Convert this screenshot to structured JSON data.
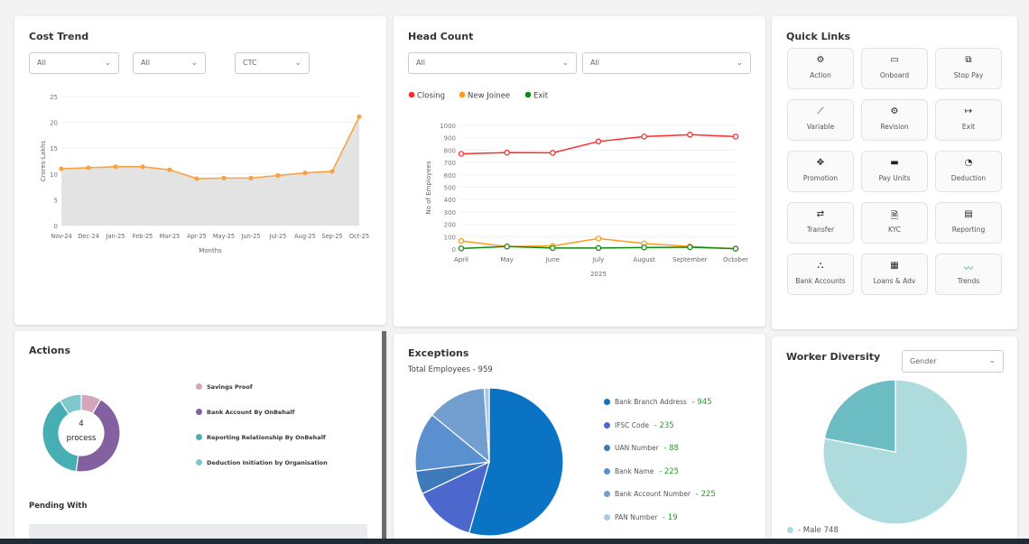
{
  "cost_trend": {
    "title": "Cost Trend",
    "filters": [
      "All",
      "All",
      "CTC"
    ]
  },
  "head_count": {
    "title": "Head Count",
    "filters": [
      "All",
      "All"
    ]
  },
  "quick_links": {
    "title": "Quick Links",
    "items": [
      {
        "label": "Action",
        "icon": "action-icon",
        "glyph": "⚙"
      },
      {
        "label": "Onboard",
        "icon": "onboard-icon",
        "glyph": "▭"
      },
      {
        "label": "Stop Pay",
        "icon": "stop-pay-icon",
        "glyph": "⧉"
      },
      {
        "label": "Variable",
        "icon": "variable-chart-icon",
        "glyph": "⟋"
      },
      {
        "label": "Revision",
        "icon": "revision-icon",
        "glyph": "⚙"
      },
      {
        "label": "Exit",
        "icon": "exit-icon",
        "glyph": "↦"
      },
      {
        "label": "Promotion",
        "icon": "promotion-icon",
        "glyph": "✥"
      },
      {
        "label": "Pay Units",
        "icon": "pay-units-icon",
        "glyph": "▬"
      },
      {
        "label": "Deduction",
        "icon": "deduction-icon",
        "glyph": "◔"
      },
      {
        "label": "Transfer",
        "icon": "transfer-icon",
        "glyph": "⇄"
      },
      {
        "label": "KYC",
        "icon": "kyc-icon",
        "glyph": "🗎"
      },
      {
        "label": "Reporting",
        "icon": "reporting-icon",
        "glyph": "▤"
      },
      {
        "label": "Bank Accounts",
        "icon": "bank-accounts-icon",
        "glyph": "⛬"
      },
      {
        "label": "Loans & Adv",
        "icon": "loans-icon",
        "glyph": "▦"
      },
      {
        "label": "Trends",
        "icon": "trends-icon",
        "glyph": "〰"
      }
    ]
  },
  "actions": {
    "title": "Actions",
    "center_count": "4",
    "center_label": "process",
    "pending_title": "Pending With"
  },
  "exceptions": {
    "title": "Exceptions",
    "subtitle": "Total Employees - 959"
  },
  "diversity": {
    "title": "Worker Diversity",
    "filter": "Gender"
  },
  "chart_data": [
    {
      "type": "area",
      "id": "cost",
      "xlabel": "Months",
      "ylabel": "Crores-Lakhs",
      "ylim": [
        0,
        25
      ],
      "yticks": [
        0,
        5,
        10,
        15,
        20,
        25
      ],
      "grid": true,
      "categories": [
        "Nov-24",
        "Dec-24",
        "Jan-25",
        "Feb-25",
        "Mar-25",
        "Apr-25",
        "May-25",
        "Jun-25",
        "Jul-25",
        "Aug-25",
        "Sep-25",
        "Oct-25"
      ],
      "values": [
        11,
        11.2,
        11.4,
        11.4,
        10.8,
        9.1,
        9.2,
        9.2,
        9.7,
        10.2,
        10.5,
        21.1
      ],
      "color": "#f7a440"
    },
    {
      "type": "line",
      "id": "hc",
      "xlabel": "2025",
      "ylabel": "No of Employees",
      "ylim": [
        0,
        1000
      ],
      "yticks": [
        0,
        100,
        200,
        300,
        400,
        500,
        600,
        700,
        800,
        900,
        1000
      ],
      "grid": true,
      "legend": "top-left",
      "categories": [
        "April",
        "May",
        "June",
        "July",
        "August",
        "September",
        "October"
      ],
      "series": [
        {
          "name": "Closing",
          "color": "#ff2a2a",
          "values": [
            770,
            780,
            778,
            870,
            910,
            925,
            910
          ]
        },
        {
          "name": "New Joinee",
          "color": "#ff9a1a",
          "values": [
            65,
            20,
            25,
            85,
            45,
            20,
            3
          ]
        },
        {
          "name": "Exit",
          "color": "#138a13",
          "values": [
            5,
            20,
            8,
            8,
            12,
            15,
            3
          ]
        }
      ]
    },
    {
      "type": "donut",
      "id": "actions",
      "legend": "right",
      "slices": [
        {
          "name": "Savings Proof",
          "value": 1,
          "color": "#d3a6b9"
        },
        {
          "name": "Bank Account By OnBehalf",
          "value": 5.2,
          "color": "#8361a0"
        },
        {
          "name": "Reporting Relationship By OnBehalf",
          "value": 4.6,
          "color": "#47aeb4"
        },
        {
          "name": "Deduction Initiation by Organisation",
          "value": 1.1,
          "color": "#80c8cc"
        }
      ]
    },
    {
      "type": "pie",
      "id": "exc",
      "legend": "right",
      "slices": [
        {
          "name": "Bank Branch Address",
          "value": 945,
          "color": "#0a73c4"
        },
        {
          "name": "IFSC Code",
          "value": 235,
          "color": "#4c68cc"
        },
        {
          "name": "UAN Number",
          "value": 88,
          "color": "#3e79ba"
        },
        {
          "name": "Bank Name",
          "value": 225,
          "color": "#5a90cf"
        },
        {
          "name": "Bank Account Number",
          "value": 225,
          "color": "#729fd0"
        },
        {
          "name": "PAN Number",
          "value": 19,
          "color": "#aac7e6"
        }
      ]
    },
    {
      "type": "pie",
      "id": "div",
      "legend": "bottom-left",
      "slices": [
        {
          "name": "Male",
          "value": 748,
          "color": "#aedbde"
        },
        {
          "value": 211,
          "color": "#6bbcc3"
        }
      ]
    }
  ]
}
